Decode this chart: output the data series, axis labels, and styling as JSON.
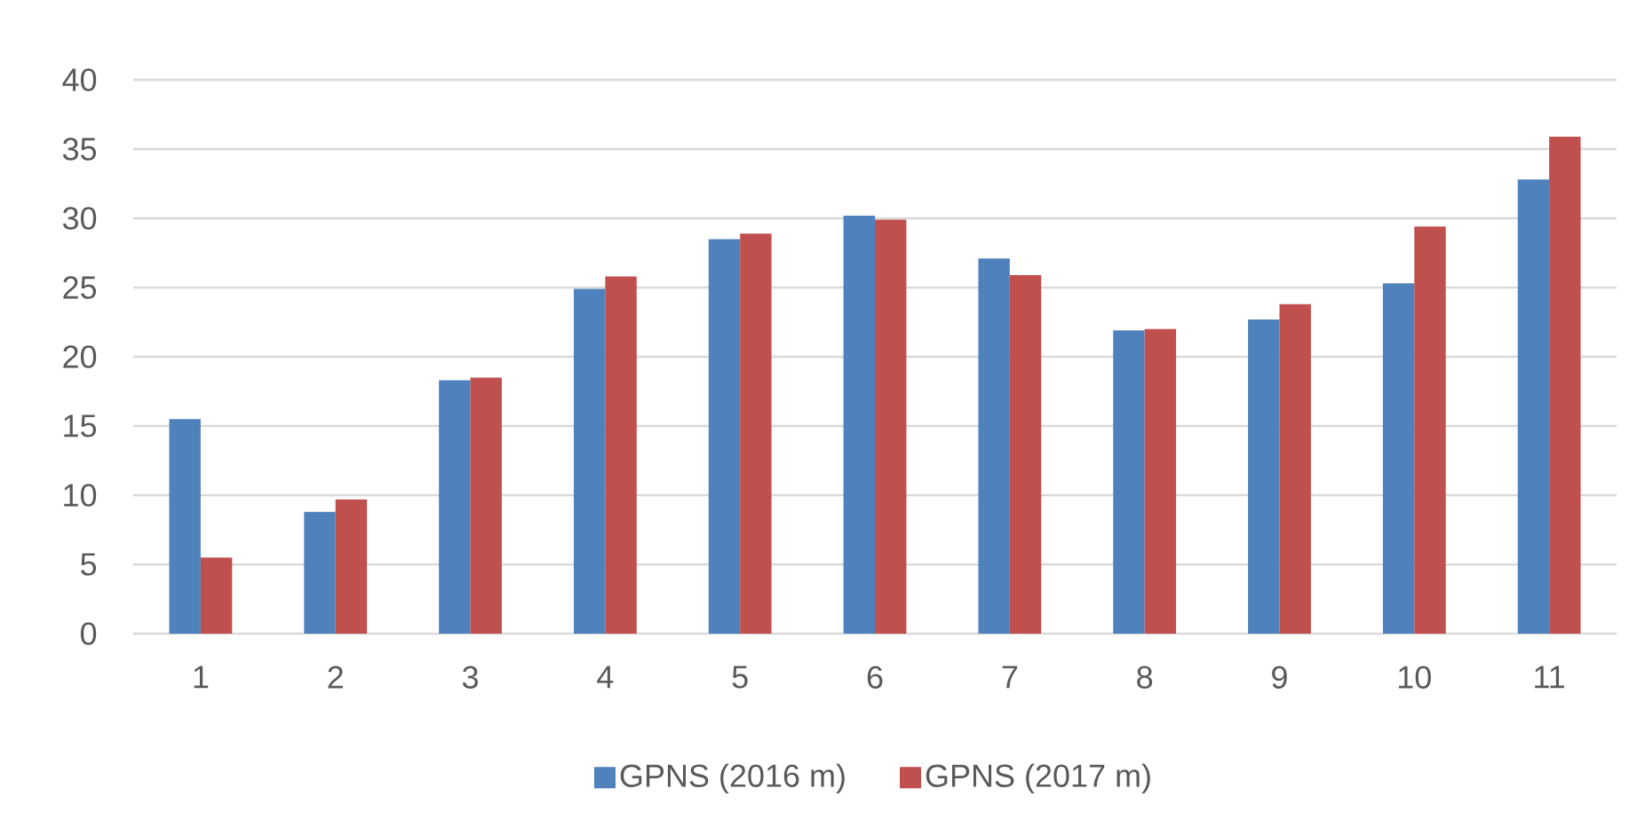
{
  "chart_data": {
    "type": "bar",
    "categories": [
      "1",
      "2",
      "3",
      "4",
      "5",
      "6",
      "7",
      "8",
      "9",
      "10",
      "11"
    ],
    "series": [
      {
        "name": "GPNS (2016 m)",
        "color": "#4f81bd",
        "values": [
          15.5,
          8.8,
          18.3,
          24.9,
          28.5,
          30.2,
          27.1,
          21.9,
          22.7,
          25.3,
          32.8
        ]
      },
      {
        "name": "GPNS (2017 m)",
        "color": "#c0504d",
        "values": [
          5.5,
          9.7,
          18.5,
          25.8,
          28.9,
          29.9,
          25.9,
          22.0,
          23.8,
          29.4,
          35.9
        ]
      }
    ],
    "ylim": [
      0,
      40
    ],
    "yticks": [
      0,
      5,
      10,
      15,
      20,
      25,
      30,
      35,
      40
    ],
    "grid": "y",
    "legend": "bottom"
  }
}
